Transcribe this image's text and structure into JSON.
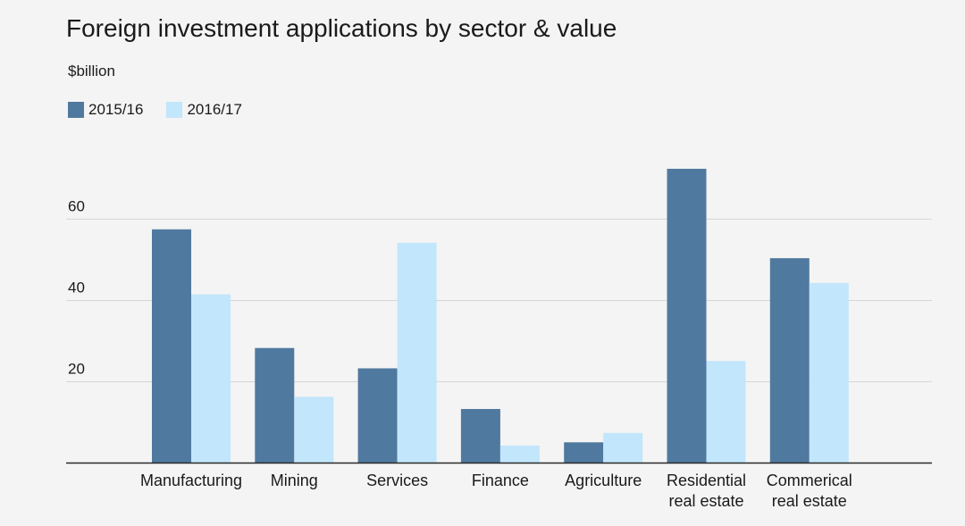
{
  "chart_data": {
    "type": "bar",
    "title": "Foreign investment applications by sector & value",
    "subtitle": "$billion",
    "ylabel": "",
    "xlabel": "",
    "categories": [
      [
        "Manufacturing"
      ],
      [
        "Mining"
      ],
      [
        "Services"
      ],
      [
        "Finance"
      ],
      [
        "Agriculture"
      ],
      [
        "Residential",
        "real estate"
      ],
      [
        "Commerical",
        "real estate"
      ]
    ],
    "series": [
      {
        "name": "2015/16",
        "color": "#50799f",
        "values": [
          57.5,
          28.3,
          23.3,
          13.3,
          5.1,
          72.4,
          50.4
        ]
      },
      {
        "name": "2016/17",
        "color": "#c2e6fb",
        "values": [
          41.5,
          16.3,
          54.2,
          4.3,
          7.4,
          25.1,
          44.3
        ]
      }
    ],
    "ylim": [
      0,
      72.4
    ],
    "yticks": [
      20,
      40,
      60
    ],
    "grid": true,
    "legend": "top-left"
  }
}
